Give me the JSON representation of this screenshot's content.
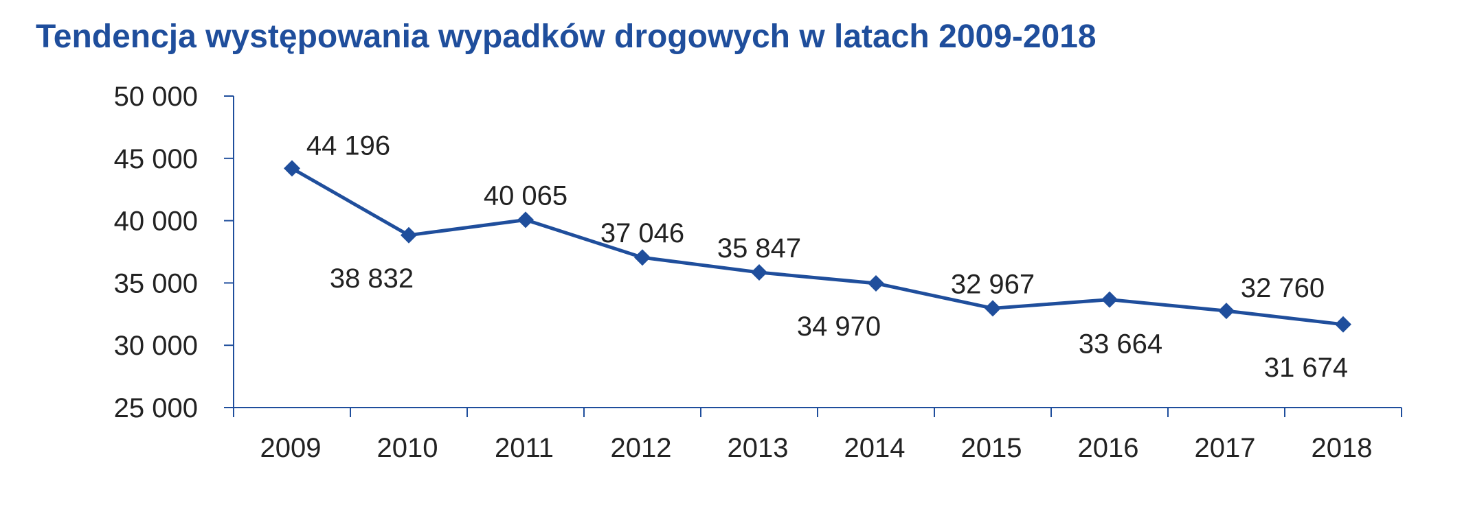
{
  "chart_data": {
    "type": "line",
    "title": "Tendencja występowania wypadków drogowych w latach 2009-2018",
    "xlabel": "",
    "ylabel": "",
    "categories": [
      "2009",
      "2010",
      "2011",
      "2012",
      "2013",
      "2014",
      "2015",
      "2016",
      "2017",
      "2018"
    ],
    "series": [
      {
        "values": [
          44196,
          38832,
          40065,
          37046,
          35847,
          34970,
          32967,
          33664,
          32760,
          31674
        ],
        "labels": [
          "44 196",
          "38 832",
          "40 065",
          "37 046",
          "35 847",
          "34 970",
          "32 967",
          "33 664",
          "32 760",
          "31 674"
        ],
        "label_positions": [
          "above-right",
          "below-left",
          "above",
          "above",
          "above",
          "below-left",
          "above",
          "below",
          "above-right",
          "below-left"
        ],
        "color": "#1f4e9c",
        "marker": "diamond"
      }
    ],
    "ylim": [
      25000,
      50000
    ],
    "yticks": [
      25000,
      30000,
      35000,
      40000,
      45000,
      50000
    ],
    "ytick_labels": [
      "25 000",
      "30 000",
      "35 000",
      "40 000",
      "45 000",
      "50 000"
    ],
    "grid": false,
    "legend": "none"
  }
}
